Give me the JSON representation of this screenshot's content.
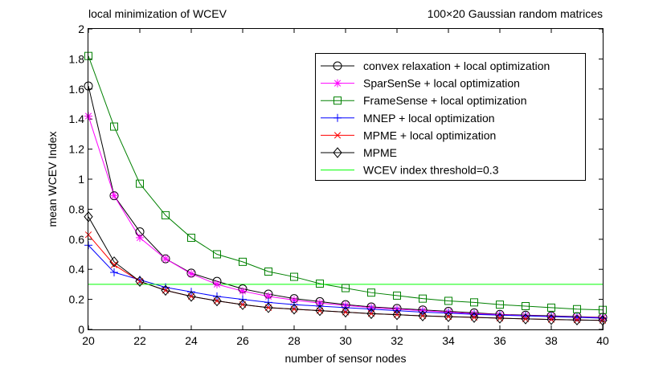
{
  "chart_data": {
    "type": "line",
    "title": "local minimization of WCEV",
    "subtitle": "100×20 Gaussian random matrices",
    "xlabel": "number of sensor nodes",
    "ylabel": "mean WCEV Index",
    "xlim": [
      20,
      40
    ],
    "ylim": [
      0,
      2
    ],
    "x_ticks": [
      "20",
      "22",
      "24",
      "26",
      "28",
      "30",
      "32",
      "34",
      "36",
      "38",
      "40"
    ],
    "y_ticks": [
      "0",
      "0.2",
      "0.4",
      "0.6",
      "0.8",
      "1",
      "1.2",
      "1.4",
      "1.6",
      "1.8",
      "2"
    ],
    "legend_position": "top-right",
    "x": [
      20,
      21,
      22,
      23,
      24,
      25,
      26,
      27,
      28,
      29,
      30,
      31,
      32,
      33,
      34,
      35,
      36,
      37,
      38,
      39,
      40
    ],
    "series": [
      {
        "name": "convex relaxation + local optimization",
        "color": "#000000",
        "marker": "circle",
        "values": [
          1.62,
          0.89,
          0.65,
          0.47,
          0.375,
          0.32,
          0.27,
          0.235,
          0.205,
          0.185,
          0.165,
          0.15,
          0.14,
          0.13,
          0.12,
          0.11,
          0.1,
          0.095,
          0.09,
          0.085,
          0.08
        ]
      },
      {
        "name": "SparSenSe + local optimization",
        "color": "#ff00ff",
        "marker": "asterisk",
        "values": [
          1.42,
          0.89,
          0.61,
          0.47,
          0.37,
          0.3,
          0.255,
          0.22,
          0.195,
          0.175,
          0.16,
          0.145,
          0.135,
          0.125,
          0.115,
          0.105,
          0.098,
          0.092,
          0.087,
          0.082,
          0.078
        ]
      },
      {
        "name": "FrameSense + local optimization",
        "color": "#008000",
        "marker": "square",
        "values": [
          1.82,
          1.35,
          0.97,
          0.76,
          0.61,
          0.5,
          0.45,
          0.385,
          0.35,
          0.305,
          0.275,
          0.245,
          0.225,
          0.205,
          0.19,
          0.18,
          0.165,
          0.155,
          0.145,
          0.135,
          0.13
        ]
      },
      {
        "name": "MNEP + local optimization",
        "color": "#0000ff",
        "marker": "plus",
        "values": [
          0.56,
          0.38,
          0.33,
          0.28,
          0.25,
          0.22,
          0.2,
          0.18,
          0.165,
          0.155,
          0.145,
          0.135,
          0.125,
          0.115,
          0.108,
          0.1,
          0.095,
          0.09,
          0.085,
          0.08,
          0.075
        ]
      },
      {
        "name": "MPME + local optimization",
        "color": "#ff0000",
        "marker": "x",
        "values": [
          0.63,
          0.43,
          0.32,
          0.26,
          0.22,
          0.19,
          0.165,
          0.145,
          0.135,
          0.125,
          0.115,
          0.105,
          0.098,
          0.09,
          0.085,
          0.08,
          0.075,
          0.07,
          0.066,
          0.063,
          0.06
        ]
      },
      {
        "name": "MPME",
        "color": "#000000",
        "marker": "diamond",
        "values": [
          0.75,
          0.45,
          0.32,
          0.26,
          0.22,
          0.19,
          0.165,
          0.145,
          0.135,
          0.125,
          0.115,
          0.105,
          0.098,
          0.09,
          0.085,
          0.08,
          0.075,
          0.07,
          0.066,
          0.063,
          0.06
        ]
      },
      {
        "name": "WCEV index threshold=0.3",
        "color": "#00ff00",
        "marker": "none",
        "values": [
          0.3,
          0.3,
          0.3,
          0.3,
          0.3,
          0.3,
          0.3,
          0.3,
          0.3,
          0.3,
          0.3,
          0.3,
          0.3,
          0.3,
          0.3,
          0.3,
          0.3,
          0.3,
          0.3,
          0.3,
          0.3
        ]
      }
    ]
  }
}
